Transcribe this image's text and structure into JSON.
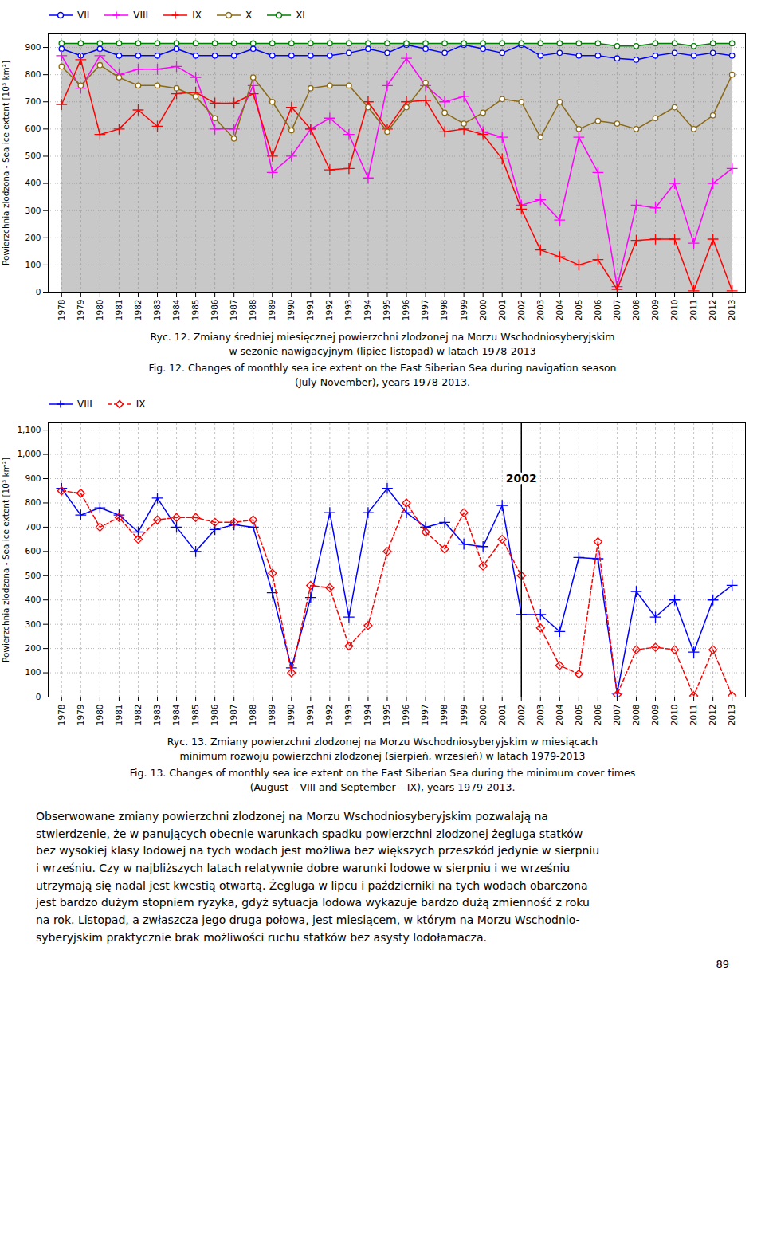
{
  "chart_data": [
    {
      "type": "line",
      "title": "Ryc. 12. Zmiany średniej miesięcznej powierzchni zlodzonej na Morzu Wschodniosyberyjskim\nw sezonie nawigacyjnym (lipiec-listopad) w latach 1978-2013",
      "subtitle": "Fig. 12. Changes of monthly sea ice extent on the East Siberian Sea during navigation season\n(July-November), years 1978-2013.",
      "x": [
        1978,
        1979,
        1980,
        1981,
        1982,
        1983,
        1984,
        1985,
        1986,
        1987,
        1988,
        1989,
        1990,
        1991,
        1992,
        1993,
        1994,
        1995,
        1996,
        1997,
        1998,
        1999,
        2000,
        2001,
        2002,
        2003,
        2004,
        2005,
        2006,
        2007,
        2008,
        2009,
        2010,
        2011,
        2012,
        2013
      ],
      "xlim": [
        1977.3,
        2013.7
      ],
      "xticks": [
        1978,
        1979,
        1980,
        1981,
        1982,
        1983,
        1984,
        1985,
        1986,
        1987,
        1988,
        1989,
        1990,
        1991,
        1992,
        1993,
        1994,
        1995,
        1996,
        1997,
        1998,
        1999,
        2000,
        2001,
        2002,
        2003,
        2004,
        2005,
        2006,
        2007,
        2008,
        2009,
        2010,
        2011,
        2012,
        2013
      ],
      "ylim": [
        0,
        950
      ],
      "yticks": [
        0,
        100,
        200,
        300,
        400,
        500,
        600,
        700,
        800,
        900
      ],
      "ylabel": "Powierzchnia zlodzona - Sea ice extent [10³ km²]",
      "grid": true,
      "legend": "top",
      "series": [
        {
          "name": "VII",
          "color": "blue",
          "marker": "circle",
          "line_style": "solid",
          "values": [
            895,
            870,
            895,
            870,
            870,
            870,
            895,
            870,
            870,
            870,
            895,
            870,
            870,
            870,
            870,
            880,
            895,
            880,
            910,
            895,
            880,
            910,
            895,
            880,
            910,
            870,
            880,
            870,
            870,
            860,
            855,
            870,
            880,
            870,
            880,
            870
          ]
        },
        {
          "name": "VIII",
          "color": "magenta",
          "marker": "plus",
          "line_style": "solid",
          "values": [
            870,
            750,
            870,
            800,
            820,
            820,
            830,
            790,
            600,
            600,
            760,
            440,
            500,
            600,
            640,
            580,
            420,
            760,
            860,
            760,
            700,
            720,
            590,
            570,
            320,
            340,
            265,
            570,
            440,
            20,
            320,
            310,
            400,
            180,
            400,
            455
          ]
        },
        {
          "name": "IX",
          "color": "red",
          "marker": "plus",
          "line_style": "solid",
          "values": [
            690,
            855,
            580,
            600,
            670,
            610,
            730,
            735,
            695,
            695,
            730,
            500,
            680,
            600,
            450,
            455,
            700,
            600,
            700,
            705,
            590,
            600,
            580,
            490,
            305,
            155,
            130,
            100,
            120,
            10,
            190,
            195,
            195,
            5,
            195,
            5
          ]
        },
        {
          "name": "X",
          "color": "#8B6914",
          "marker": "circle",
          "line_style": "solid",
          "values": [
            830,
            760,
            835,
            790,
            760,
            760,
            750,
            720,
            640,
            565,
            790,
            700,
            595,
            750,
            760,
            760,
            680,
            590,
            680,
            770,
            660,
            620,
            660,
            710,
            700,
            570,
            700,
            600,
            630,
            620,
            600,
            640,
            680,
            600,
            650,
            800
          ]
        },
        {
          "name": "XI",
          "color": "#008000",
          "marker": "circle",
          "line_style": "solid",
          "type": "area",
          "values": [
            915,
            915,
            915,
            915,
            915,
            915,
            915,
            915,
            915,
            915,
            915,
            915,
            915,
            915,
            915,
            915,
            915,
            915,
            915,
            915,
            915,
            915,
            915,
            915,
            915,
            915,
            915,
            915,
            915,
            905,
            905,
            915,
            915,
            905,
            915,
            915
          ]
        }
      ]
    },
    {
      "type": "line",
      "title": "Ryc. 13. Zmiany powierzchni zlodzonej na Morzu Wschodniosyberyjskim w miesiącach\nminimum rozwoju powierzchni zlodzonej (sierpień, wrzesień) w latach 1979-2013",
      "subtitle": "Fig. 13. Changes of monthly sea ice extent on the East Siberian Sea during the minimum cover times\n(August – VIII and September – IX), years 1979-2013.",
      "x": [
        1978,
        1979,
        1980,
        1981,
        1982,
        1983,
        1984,
        1985,
        1986,
        1987,
        1988,
        1989,
        1990,
        1991,
        1992,
        1993,
        1994,
        1995,
        1996,
        1997,
        1998,
        1999,
        2000,
        2001,
        2002,
        2003,
        2004,
        2005,
        2006,
        2007,
        2008,
        2009,
        2010,
        2011,
        2012,
        2013
      ],
      "xlim": [
        1977.3,
        2013.7
      ],
      "xticks": [
        1978,
        1979,
        1980,
        1981,
        1982,
        1983,
        1984,
        1985,
        1986,
        1987,
        1988,
        1989,
        1990,
        1991,
        1992,
        1993,
        1994,
        1995,
        1996,
        1997,
        1998,
        1999,
        2000,
        2001,
        2002,
        2003,
        2004,
        2005,
        2006,
        2007,
        2008,
        2009,
        2010,
        2011,
        2012,
        2013
      ],
      "ylim": [
        0,
        1130
      ],
      "yticks": [
        0,
        100,
        200,
        300,
        400,
        500,
        600,
        700,
        800,
        900,
        1000,
        1100
      ],
      "ylabel": "Powierzchnia zlodzona - Sea ice extent [10³ km²]",
      "grid": true,
      "legend": "top",
      "annotations": [
        {
          "text": "2002",
          "x": 2002,
          "y": 900
        }
      ],
      "series": [
        {
          "name": "VIII",
          "color": "blue",
          "marker": "plus",
          "line_style": "solid",
          "values": [
            860,
            750,
            780,
            750,
            680,
            820,
            700,
            600,
            690,
            710,
            700,
            430,
            120,
            410,
            760,
            330,
            760,
            860,
            760,
            700,
            720,
            630,
            620,
            790,
            340,
            340,
            270,
            575,
            570,
            15,
            435,
            330,
            400,
            185,
            400,
            460
          ]
        },
        {
          "name": "IX",
          "color": "red",
          "marker": "diamond",
          "line_style": "dashed",
          "values": [
            850,
            840,
            700,
            740,
            650,
            730,
            740,
            740,
            720,
            720,
            730,
            510,
            100,
            460,
            450,
            210,
            295,
            600,
            800,
            680,
            610,
            760,
            540,
            650,
            500,
            285,
            130,
            95,
            640,
            10,
            195,
            205,
            195,
            5,
            195,
            5
          ]
        }
      ]
    }
  ],
  "body_text": [
    "Obserwowane zmiany powierzchni zlodzonej na Morzu Wschodniosyberyjskim pozwalają na",
    "stwierdzenie, że w panujących obecnie warunkach spadku powierzchni zlodzonej żegluga statków",
    "bez wysokiej klasy lodowej na tych wodach jest możliwa bez większych przeszkód jedynie w sierpniu",
    "i wrześniu. Czy w najbliższych latach relatywnie dobre warunki lodowe w sierpniu i we wrześniu",
    "utrzymają się nadal jest kwestią otwartą. Żegluga w lipcu i październiki na tych wodach obarczona",
    "jest bardzo dużym stopniem ryzyka, gdyż sytuacja lodowa wykazuje bardzo dużą zmienność z roku",
    "na rok. Listopad, a zwłaszcza jego druga połowa, jest miesiącem, w którym na Morzu Wschodnio-",
    "syberyjskim praktycznie brak możliwości ruchu statków bez asysty lodołamacza."
  ],
  "page_number": "89"
}
